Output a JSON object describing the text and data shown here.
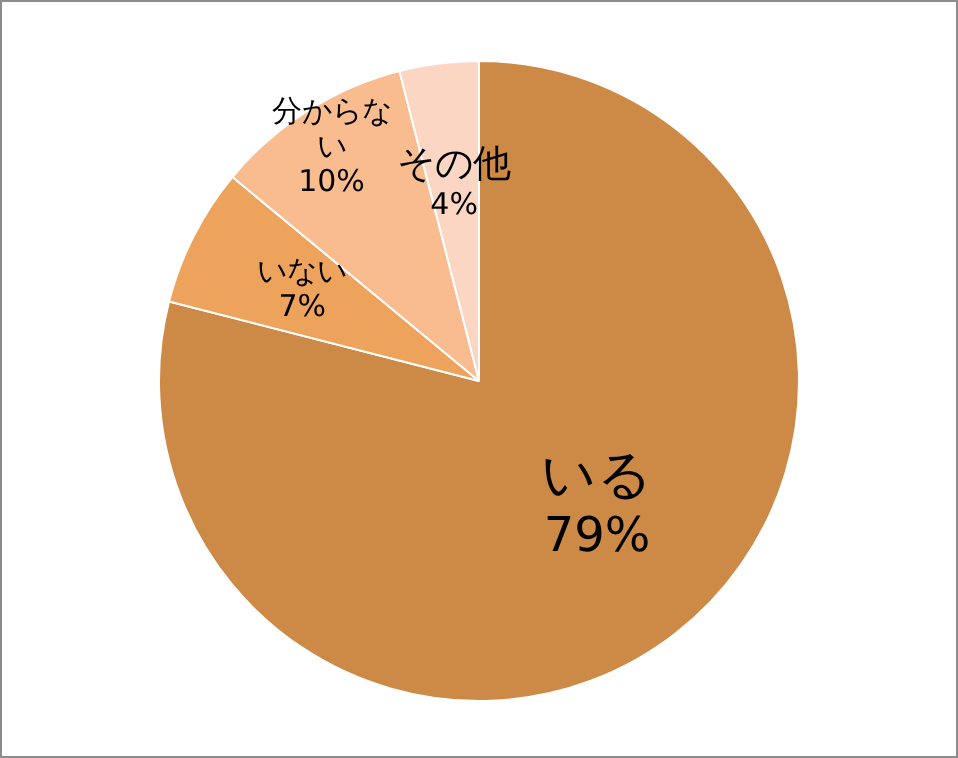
{
  "chart_data": {
    "type": "pie",
    "categories": [
      "いる",
      "いない",
      "分からない",
      "その他"
    ],
    "values": [
      79,
      7,
      10,
      4
    ],
    "colors": [
      "#cd8a46",
      "#eda35c",
      "#f9bc8f",
      "#fbd6c3"
    ],
    "value_labels": [
      "79%",
      "7%",
      "10%",
      "4%"
    ],
    "legend": false
  }
}
